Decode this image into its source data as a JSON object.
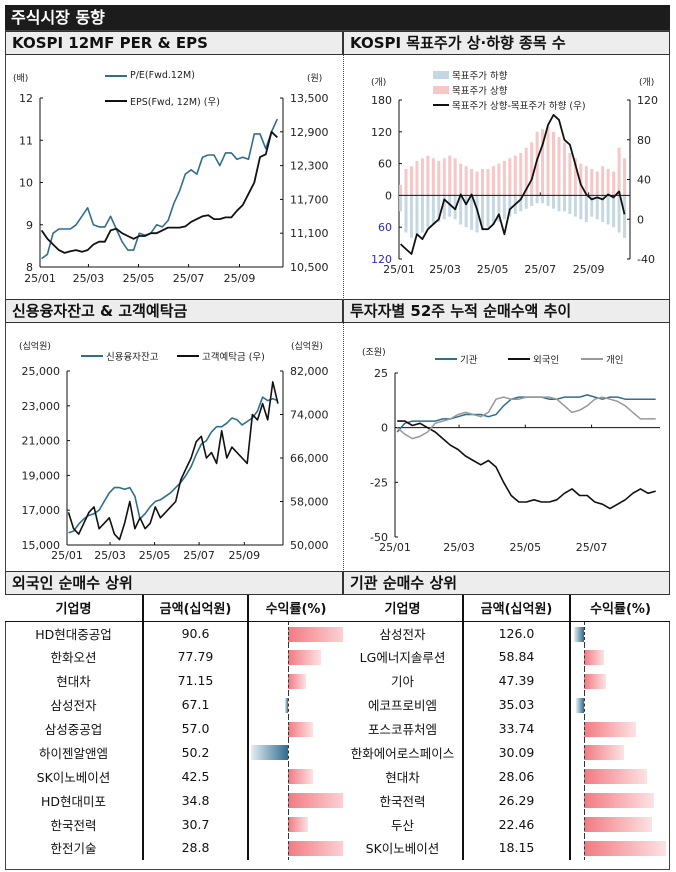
{
  "page_title": "주식시장 동향",
  "colors": {
    "pe": "#2e6f8e",
    "eps": "#111111",
    "down_bar": "#c5d7e3",
    "up_bar": "#f7c6c6",
    "inst": "#2e6f8e",
    "foreign": "#111111",
    "retail": "#999999",
    "neg_tick": "#2b2bb8"
  },
  "chart_data": [
    {
      "type": "line",
      "title": "KOSPI 12MF PER & EPS",
      "y_unit": "(배)",
      "y2_unit": "(원)",
      "xlim": [
        "2025-01-01",
        "2025-10-24"
      ],
      "xticks": [
        "2025-01-01",
        "2025-03-01",
        "2025-05-01",
        "2025-07-01",
        "2025-09-01"
      ],
      "xtick_labels": [
        "25/01",
        "25/03",
        "25/05",
        "25/07",
        "25/09"
      ],
      "ylim": [
        8,
        12
      ],
      "yticks": [
        8,
        9,
        10,
        11,
        12
      ],
      "ytick_labels": [
        "8",
        "9",
        "10",
        "11",
        "12"
      ],
      "y2lim": [
        10500,
        13500
      ],
      "y2ticks": [
        10500,
        11100,
        11700,
        12300,
        12900,
        13500
      ],
      "y2tick_labels": [
        "10,500",
        "11,100",
        "11,700",
        "12,300",
        "12,900",
        "13,500"
      ],
      "dates": [
        "2025-01-03",
        "2025-01-10",
        "2025-01-17",
        "2025-01-24",
        "2025-01-31",
        "2025-02-07",
        "2025-02-14",
        "2025-02-21",
        "2025-02-28",
        "2025-03-07",
        "2025-03-14",
        "2025-03-21",
        "2025-03-28",
        "2025-04-04",
        "2025-04-11",
        "2025-04-18",
        "2025-04-25",
        "2025-05-02",
        "2025-05-09",
        "2025-05-16",
        "2025-05-23",
        "2025-05-30",
        "2025-06-06",
        "2025-06-13",
        "2025-06-20",
        "2025-06-27",
        "2025-07-04",
        "2025-07-11",
        "2025-07-18",
        "2025-07-25",
        "2025-08-01",
        "2025-08-08",
        "2025-08-15",
        "2025-08-22",
        "2025-08-29",
        "2025-09-05",
        "2025-09-12",
        "2025-09-19",
        "2025-09-26",
        "2025-10-03",
        "2025-10-10",
        "2025-10-17"
      ],
      "series": [
        {
          "name": "P/E(Fwd.12M)",
          "axis": "left",
          "values": [
            8.2,
            8.3,
            8.8,
            8.9,
            8.9,
            8.9,
            9.0,
            9.2,
            9.4,
            9.0,
            8.95,
            8.95,
            9.2,
            8.9,
            8.6,
            8.4,
            8.4,
            8.8,
            8.75,
            8.8,
            9.0,
            8.95,
            9.1,
            9.5,
            9.8,
            10.2,
            10.3,
            10.2,
            10.6,
            10.65,
            10.65,
            10.4,
            10.7,
            10.7,
            10.55,
            10.6,
            10.55,
            11.15,
            11.15,
            10.8,
            11.2,
            11.5
          ]
        },
        {
          "name": "EPS(Fwd, 12M) (우)",
          "axis": "right",
          "values": [
            11150,
            11000,
            10900,
            10800,
            10750,
            10780,
            10800,
            10770,
            10800,
            10900,
            10950,
            10950,
            11150,
            11180,
            11100,
            11050,
            11000,
            11050,
            11050,
            11100,
            11100,
            11150,
            11200,
            11200,
            11200,
            11220,
            11300,
            11350,
            11400,
            11420,
            11350,
            11350,
            11380,
            11380,
            11500,
            11600,
            11800,
            12000,
            12450,
            12500,
            12900,
            12800
          ]
        }
      ]
    },
    {
      "type": "bar+line",
      "title": "KOSPI 목표주가 상·하향 종목 수",
      "y_unit": "(개)",
      "y2_unit": "(개)",
      "xlim": [
        "2025-01-01",
        "2025-10-24"
      ],
      "xticks": [
        "2025-01-01",
        "2025-03-01",
        "2025-05-01",
        "2025-07-01",
        "2025-09-01"
      ],
      "xtick_labels": [
        "25/01",
        "25/03",
        "25/05",
        "25/07",
        "25/09"
      ],
      "ylim": [
        -120,
        180
      ],
      "yticks": [
        -120,
        -60,
        0,
        60,
        120,
        180
      ],
      "ytick_labels": [
        "120",
        "60",
        "0",
        "60",
        "120",
        "180"
      ],
      "y2lim": [
        -40,
        120
      ],
      "y2ticks": [
        -40,
        0,
        40,
        80,
        120
      ],
      "y2tick_labels": [
        "-40",
        "0",
        "40",
        "80",
        "120"
      ],
      "dates": [
        "2025-01-03",
        "2025-01-10",
        "2025-01-17",
        "2025-01-24",
        "2025-01-31",
        "2025-02-07",
        "2025-02-14",
        "2025-02-21",
        "2025-02-28",
        "2025-03-07",
        "2025-03-14",
        "2025-03-21",
        "2025-03-28",
        "2025-04-04",
        "2025-04-11",
        "2025-04-18",
        "2025-04-25",
        "2025-05-02",
        "2025-05-09",
        "2025-05-16",
        "2025-05-23",
        "2025-05-30",
        "2025-06-06",
        "2025-06-13",
        "2025-06-20",
        "2025-06-27",
        "2025-07-04",
        "2025-07-11",
        "2025-07-18",
        "2025-07-25",
        "2025-08-01",
        "2025-08-08",
        "2025-08-15",
        "2025-08-22",
        "2025-08-29",
        "2025-09-05",
        "2025-09-12",
        "2025-09-19",
        "2025-09-26",
        "2025-10-03",
        "2025-10-10",
        "2025-10-17"
      ],
      "series": [
        {
          "name": "목표주가 하향",
          "axis": "left",
          "kind": "bar_down",
          "values": [
            30,
            70,
            80,
            75,
            70,
            60,
            55,
            50,
            45,
            40,
            45,
            55,
            60,
            65,
            70,
            65,
            60,
            55,
            50,
            45,
            40,
            35,
            30,
            25,
            20,
            15,
            15,
            20,
            25,
            30,
            30,
            35,
            40,
            45,
            50,
            40,
            45,
            50,
            55,
            60,
            70,
            80
          ]
        },
        {
          "name": "목표주가 상향",
          "axis": "left",
          "kind": "bar_up",
          "values": [
            20,
            50,
            55,
            65,
            70,
            75,
            70,
            65,
            70,
            75,
            70,
            60,
            55,
            50,
            45,
            50,
            50,
            55,
            60,
            65,
            70,
            75,
            80,
            90,
            100,
            120,
            125,
            130,
            120,
            110,
            100,
            80,
            70,
            60,
            55,
            50,
            45,
            55,
            50,
            45,
            90,
            70
          ]
        },
        {
          "name": "목표주가 상향-목표주가 하향 (우)",
          "axis": "right",
          "kind": "line",
          "values": [
            -25,
            -30,
            -35,
            -15,
            -20,
            -10,
            -5,
            0,
            20,
            15,
            10,
            25,
            15,
            25,
            10,
            -10,
            -10,
            -5,
            5,
            -15,
            10,
            15,
            20,
            30,
            40,
            60,
            75,
            95,
            105,
            100,
            80,
            75,
            55,
            35,
            25,
            20,
            22,
            20,
            25,
            22,
            28,
            5
          ]
        }
      ]
    },
    {
      "type": "line",
      "title": "신용융자잔고 & 고객예탁금",
      "y_unit": "(십억원)",
      "y2_unit": "(십억원)",
      "xlim": [
        "2025-01-01",
        "2025-10-24"
      ],
      "xticks": [
        "2025-01-01",
        "2025-03-01",
        "2025-05-01",
        "2025-07-01",
        "2025-09-01"
      ],
      "xtick_labels": [
        "25/01",
        "25/03",
        "25/05",
        "25/07",
        "25/09"
      ],
      "ylim": [
        15000,
        25000
      ],
      "yticks": [
        15000,
        17000,
        19000,
        21000,
        23000,
        25000
      ],
      "ytick_labels": [
        "15,000",
        "17,000",
        "19,000",
        "21,000",
        "23,000",
        "25,000"
      ],
      "y2lim": [
        50000,
        82000
      ],
      "y2ticks": [
        50000,
        58000,
        66000,
        74000,
        82000
      ],
      "y2tick_labels": [
        "50,000",
        "58,000",
        "66,000",
        "74,000",
        "82,000"
      ],
      "dates": [
        "2025-01-03",
        "2025-01-10",
        "2025-01-17",
        "2025-01-24",
        "2025-01-31",
        "2025-02-07",
        "2025-02-14",
        "2025-02-21",
        "2025-02-28",
        "2025-03-07",
        "2025-03-14",
        "2025-03-21",
        "2025-03-28",
        "2025-04-04",
        "2025-04-11",
        "2025-04-18",
        "2025-04-25",
        "2025-05-02",
        "2025-05-09",
        "2025-05-16",
        "2025-05-23",
        "2025-05-30",
        "2025-06-06",
        "2025-06-13",
        "2025-06-20",
        "2025-06-27",
        "2025-07-04",
        "2025-07-11",
        "2025-07-18",
        "2025-07-25",
        "2025-08-01",
        "2025-08-08",
        "2025-08-15",
        "2025-08-22",
        "2025-08-29",
        "2025-09-05",
        "2025-09-12",
        "2025-09-19",
        "2025-09-26",
        "2025-10-03",
        "2025-10-10",
        "2025-10-17"
      ],
      "series": [
        {
          "name": "신용융자잔고",
          "axis": "left",
          "values": [
            15700,
            15800,
            16200,
            16500,
            16700,
            16800,
            17000,
            17500,
            18000,
            18300,
            18300,
            18200,
            18300,
            17800,
            16500,
            16800,
            17200,
            17500,
            17600,
            17800,
            18000,
            18300,
            18600,
            19000,
            19500,
            20200,
            20800,
            21000,
            21500,
            21800,
            21800,
            22000,
            22300,
            22200,
            21900,
            22100,
            22300,
            22700,
            23500,
            23300,
            23400,
            23300
          ]
        },
        {
          "name": "고객예탁금 (우)",
          "axis": "right",
          "values": [
            56000,
            53000,
            52000,
            54000,
            56000,
            57000,
            53000,
            54000,
            55000,
            52000,
            51000,
            54000,
            58000,
            53000,
            55000,
            53000,
            54000,
            57000,
            55000,
            56000,
            57000,
            58000,
            62000,
            64000,
            66000,
            69000,
            70000,
            66000,
            67000,
            65000,
            71000,
            66000,
            68000,
            67000,
            66000,
            65000,
            74000,
            73000,
            76000,
            73000,
            80000,
            76000
          ]
        }
      ]
    },
    {
      "type": "line",
      "title": "투자자별 52주 누적 순매수액 추이",
      "y_unit": "(조원)",
      "xlim": [
        "2025-01-01",
        "2025-09-02"
      ],
      "xticks": [
        "2025-01-01",
        "2025-03-01",
        "2025-05-01",
        "2025-07-01"
      ],
      "xtick_labels": [
        "25/01",
        "25/03",
        "25/05",
        "25/07"
      ],
      "ylim": [
        -50,
        25
      ],
      "yticks": [
        -50,
        -25,
        0,
        25
      ],
      "ytick_labels": [
        "-50",
        "-25",
        "0",
        "25"
      ],
      "dates": [
        "2025-01-03",
        "2025-01-10",
        "2025-01-17",
        "2025-01-24",
        "2025-01-31",
        "2025-02-07",
        "2025-02-14",
        "2025-02-21",
        "2025-02-28",
        "2025-03-07",
        "2025-03-14",
        "2025-03-21",
        "2025-03-28",
        "2025-04-04",
        "2025-04-11",
        "2025-04-18",
        "2025-04-25",
        "2025-05-02",
        "2025-05-09",
        "2025-05-16",
        "2025-05-23",
        "2025-05-30",
        "2025-06-06",
        "2025-06-13",
        "2025-06-20",
        "2025-06-27",
        "2025-07-04",
        "2025-07-11",
        "2025-07-18",
        "2025-07-25",
        "2025-08-01",
        "2025-08-08",
        "2025-08-15",
        "2025-08-22",
        "2025-08-29"
      ],
      "series": [
        {
          "name": "기관",
          "values": [
            -2,
            2,
            3,
            3,
            3,
            3,
            4,
            4,
            5,
            6,
            6,
            6,
            5,
            6,
            10,
            13,
            14,
            14,
            14,
            14,
            13,
            13,
            14,
            14,
            14,
            15,
            14,
            13,
            14,
            14,
            13,
            13,
            13,
            13,
            13
          ]
        },
        {
          "name": "외국인",
          "values": [
            3,
            3,
            1,
            2,
            0,
            -2,
            -5,
            -8,
            -10,
            -13,
            -15,
            -17,
            -15,
            -18,
            -25,
            -31,
            -34,
            -34,
            -33,
            -34,
            -34,
            -33,
            -30,
            -28,
            -31,
            -31,
            -34,
            -35,
            -37,
            -35,
            -33,
            -30,
            -28,
            -30,
            -29
          ]
        },
        {
          "name": "개인",
          "values": [
            0,
            -3,
            -5,
            -4,
            -2,
            2,
            3,
            4,
            6,
            7,
            6,
            5,
            7,
            13,
            14,
            13,
            13,
            14,
            14,
            14,
            14,
            13,
            10,
            7,
            8,
            10,
            13,
            14,
            13,
            12,
            10,
            7,
            4,
            4,
            4
          ]
        }
      ]
    }
  ],
  "tables": [
    {
      "title": "외국인 순매수 상위",
      "headers": [
        "기업명",
        "금액(십억원)",
        "수익률(%)"
      ],
      "rows": [
        {
          "name": "HD현대중공업",
          "amount": "90.6",
          "return_level": 0.8
        },
        {
          "name": "한화오션",
          "amount": "77.79",
          "return_level": 0.4
        },
        {
          "name": "현대차",
          "amount": "71.15",
          "return_level": 0.22
        },
        {
          "name": "삼성전자",
          "amount": "67.1",
          "return_level": -0.04
        },
        {
          "name": "삼성중공업",
          "amount": "57.0",
          "return_level": 0.3
        },
        {
          "name": "하이젠알앤엠",
          "amount": "50.2",
          "return_level": -0.45
        },
        {
          "name": "SK이노베이션",
          "amount": "42.5",
          "return_level": 0.3
        },
        {
          "name": "HD현대미포",
          "amount": "34.8",
          "return_level": 0.8
        },
        {
          "name": "한국전력",
          "amount": "30.7",
          "return_level": 0.24
        },
        {
          "name": "한전기술",
          "amount": "28.8",
          "return_level": 0.8
        }
      ]
    },
    {
      "title": "기관 순매수 상위",
      "headers": [
        "기업명",
        "금액(십억원)",
        "수익률(%)"
      ],
      "rows": [
        {
          "name": "삼성전자",
          "amount": "126.0",
          "return_level": -0.12
        },
        {
          "name": "LG에너지솔루션",
          "amount": "58.84",
          "return_level": 0.24
        },
        {
          "name": "기아",
          "amount": "47.39",
          "return_level": 0.27
        },
        {
          "name": "에코프로비엠",
          "amount": "35.03",
          "return_level": -0.1
        },
        {
          "name": "포스코퓨처엠",
          "amount": "33.74",
          "return_level": 0.63
        },
        {
          "name": "한화에어로스페이스",
          "amount": "30.09",
          "return_level": 0.49
        },
        {
          "name": "현대차",
          "amount": "28.06",
          "return_level": 0.77
        },
        {
          "name": "한국전력",
          "amount": "26.29",
          "return_level": 0.85
        },
        {
          "name": "두산",
          "amount": "22.46",
          "return_level": 0.83
        },
        {
          "name": "SK이노베이션",
          "amount": "18.15",
          "return_level": 1.0
        }
      ]
    }
  ]
}
